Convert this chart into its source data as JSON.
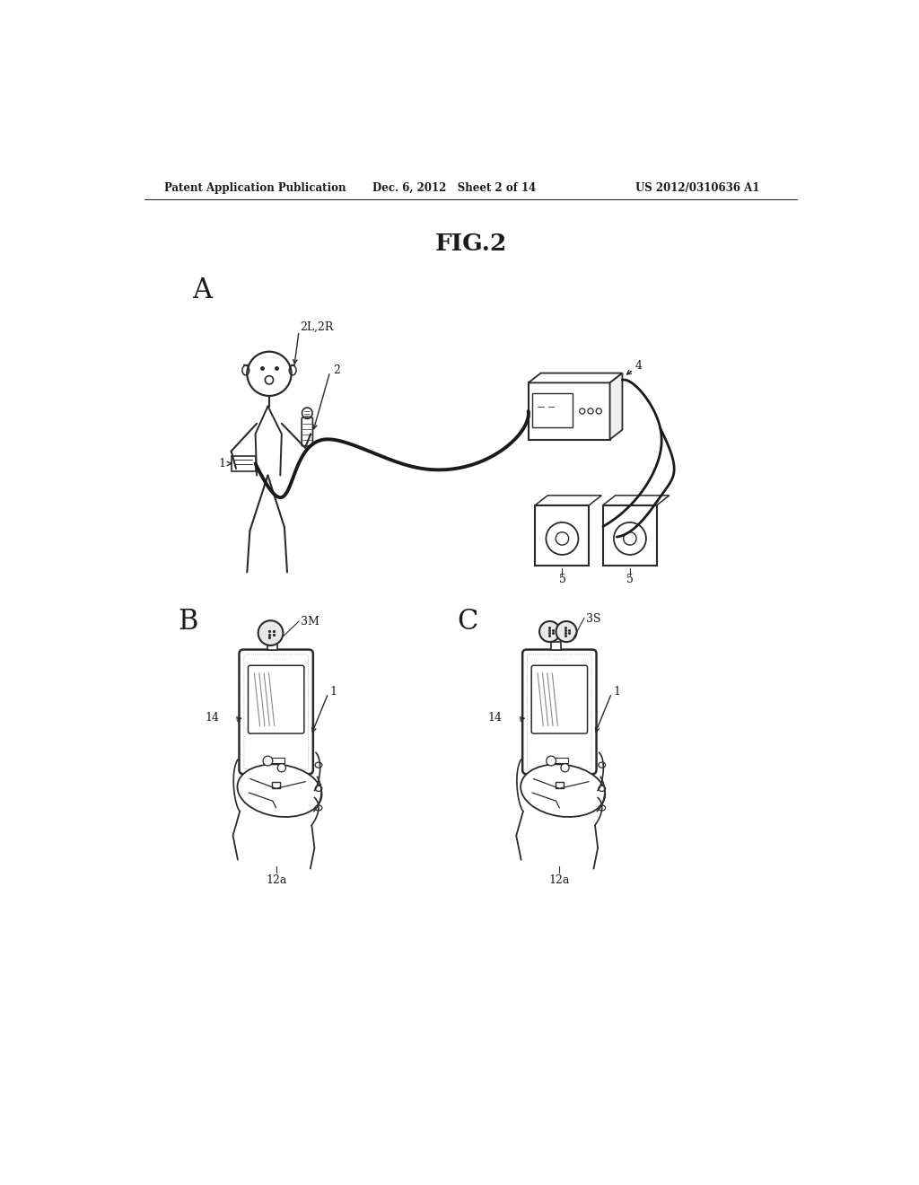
{
  "bg_color": "#ffffff",
  "header_left": "Patent Application Publication",
  "header_mid": "Dec. 6, 2012   Sheet 2 of 14",
  "header_right": "US 2012/0310636 A1",
  "fig_title": "FIG.2",
  "label_A": "A",
  "label_B": "B",
  "label_C": "C",
  "line_color": "#2a2a2a",
  "text_color": "#1a1a1a",
  "fig_width": 1024,
  "fig_height": 1320
}
